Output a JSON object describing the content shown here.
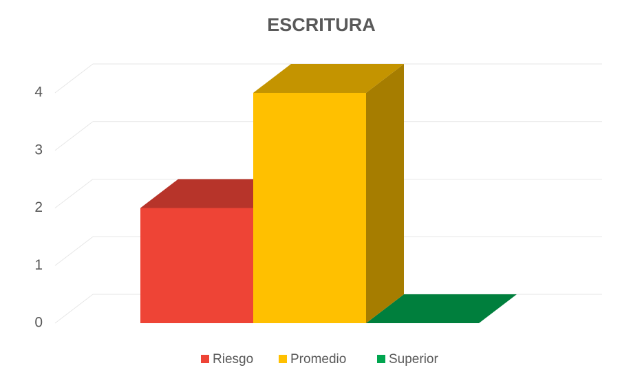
{
  "chart_data": {
    "type": "bar3d",
    "title": "ESCRITURA",
    "categories": [
      null
    ],
    "series": [
      {
        "name": "Riesgo",
        "color": "#ee4436",
        "values": [
          2
        ]
      },
      {
        "name": "Promedio",
        "color": "#ffc000",
        "values": [
          4
        ]
      },
      {
        "name": "Superior",
        "color": "#00a54f",
        "values": [
          0
        ]
      }
    ],
    "ylim": [
      0,
      4
    ],
    "yticks": [
      0,
      1,
      2,
      3,
      4
    ],
    "grid": true,
    "legend": "bottom"
  }
}
